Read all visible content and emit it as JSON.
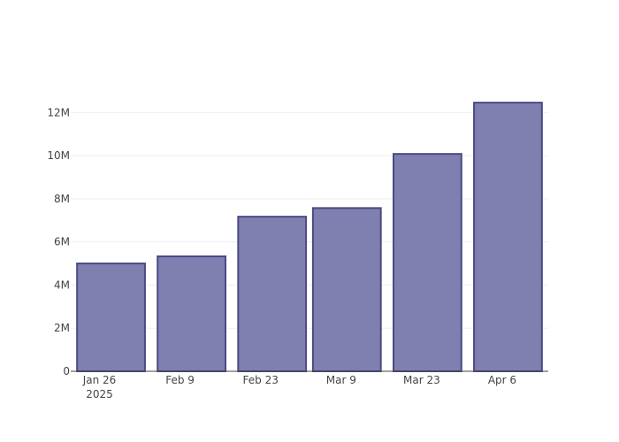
{
  "chart_data": {
    "type": "bar",
    "x": [
      "2025-01-28",
      "2025-02-11",
      "2025-02-25",
      "2025-03-10",
      "2025-03-24",
      "2025-04-07"
    ],
    "values": [
      5000000,
      5330000,
      7170000,
      7570000,
      10080000,
      12460000
    ],
    "x_tick_labels": [
      {
        "date": "2025-01-26",
        "label": "Jan 26",
        "sublabel": "2025"
      },
      {
        "date": "2025-02-09",
        "label": "Feb 9",
        "sublabel": ""
      },
      {
        "date": "2025-02-23",
        "label": "Feb 23",
        "sublabel": ""
      },
      {
        "date": "2025-03-09",
        "label": "Mar 9",
        "sublabel": ""
      },
      {
        "date": "2025-03-23",
        "label": "Mar 23",
        "sublabel": ""
      },
      {
        "date": "2025-04-06",
        "label": "Apr 6",
        "sublabel": ""
      }
    ],
    "y_tick_values": [
      0,
      2000000,
      4000000,
      6000000,
      8000000,
      10000000,
      12000000
    ],
    "y_tick_labels": [
      "0",
      "2M",
      "4M",
      "6M",
      "8M",
      "10M",
      "12M"
    ],
    "xlim": [
      "2025-01-21",
      "2025-04-14"
    ],
    "ylim": [
      0,
      13120000
    ],
    "title": "",
    "xlabel": "",
    "ylabel": "",
    "grid": true,
    "legend": "none",
    "bar_fill": "#7f7fb0",
    "bar_stroke": "#4a4a85",
    "axis_color": "#444444",
    "grid_color": "#eeeeee"
  }
}
